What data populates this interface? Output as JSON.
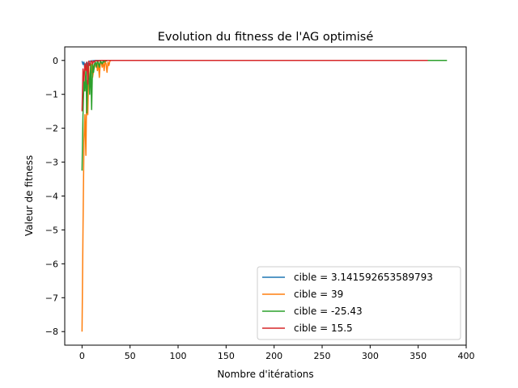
{
  "chart_data": {
    "type": "line",
    "title": "Evolution du fitness de l'AG optimisé",
    "xlabel": "Nombre d'itérations",
    "ylabel": "Valeur de fitness",
    "xlim": [
      -18,
      400
    ],
    "ylim": [
      -8.4,
      0.4
    ],
    "xticks": [
      0,
      50,
      100,
      150,
      200,
      250,
      300,
      350,
      400
    ],
    "yticks": [
      0,
      -1,
      -2,
      -3,
      -4,
      -5,
      -6,
      -7,
      -8
    ],
    "xtick_labels": [
      "0",
      "50",
      "100",
      "150",
      "200",
      "250",
      "300",
      "350",
      "400"
    ],
    "ytick_labels": [
      "0",
      "−1",
      "−2",
      "−3",
      "−4",
      "−5",
      "−6",
      "−7",
      "−8"
    ],
    "grid": false,
    "legend_position": "lower-right",
    "series": [
      {
        "name": "cible = 3.141592653589793",
        "color": "#1f77b4",
        "x": [
          0,
          1,
          2,
          3,
          4,
          5,
          6,
          7,
          8,
          10,
          14,
          20,
          360
        ],
        "y": [
          -0.02,
          -0.12,
          -0.05,
          -0.25,
          -0.1,
          -0.05,
          -0.15,
          -0.03,
          -0.02,
          -0.01,
          0,
          0,
          0
        ]
      },
      {
        "name": "cible = 39",
        "color": "#ff7f0e",
        "x": [
          0,
          1,
          2,
          3,
          4,
          5,
          6,
          7,
          8,
          9,
          10,
          11,
          12,
          13,
          14,
          15,
          16,
          17,
          18,
          19,
          20,
          21,
          22,
          23,
          24,
          25,
          26,
          27,
          28,
          29,
          30,
          300
        ],
        "y": [
          -8.0,
          -5.0,
          -2.4,
          -1.6,
          -2.8,
          -0.6,
          -1.6,
          -0.2,
          -0.8,
          -0.5,
          -0.1,
          -0.5,
          -0.3,
          -0.2,
          -0.1,
          -0.1,
          -0.3,
          -0.05,
          -0.5,
          -0.1,
          -0.05,
          -0.2,
          -0.05,
          -0.3,
          -0.02,
          -0.1,
          -0.35,
          -0.05,
          -0.15,
          -0.02,
          0,
          0
        ]
      },
      {
        "name": "cible = -25.43",
        "color": "#2ca02c",
        "x": [
          0,
          1,
          2,
          3,
          4,
          5,
          6,
          7,
          8,
          9,
          10,
          11,
          12,
          13,
          14,
          15,
          16,
          17,
          18,
          19,
          20,
          21,
          22,
          23,
          24,
          25,
          26,
          380
        ],
        "y": [
          -3.25,
          -1.6,
          -0.6,
          -0.9,
          -0.3,
          -1.55,
          -0.15,
          -0.4,
          -1.0,
          -0.1,
          -1.45,
          -0.05,
          -0.35,
          -0.1,
          -0.05,
          -0.2,
          -0.02,
          -0.08,
          -0.2,
          -0.02,
          -0.05,
          -0.1,
          -0.02,
          -0.05,
          -0.01,
          -0.02,
          0,
          0
        ]
      },
      {
        "name": "cible = 15.5",
        "color": "#d62728",
        "x": [
          0,
          1,
          2,
          3,
          4,
          5,
          6,
          7,
          8,
          9,
          10,
          11,
          12,
          13,
          14,
          15,
          16,
          17,
          18,
          19,
          20,
          360
        ],
        "y": [
          -1.5,
          -0.25,
          -0.6,
          -0.1,
          -0.3,
          -0.05,
          -0.7,
          -0.02,
          -0.15,
          -0.05,
          -0.01,
          -0.1,
          -0.02,
          -0.05,
          0,
          -0.01,
          0,
          -0.02,
          0,
          0,
          0,
          0
        ]
      }
    ]
  }
}
